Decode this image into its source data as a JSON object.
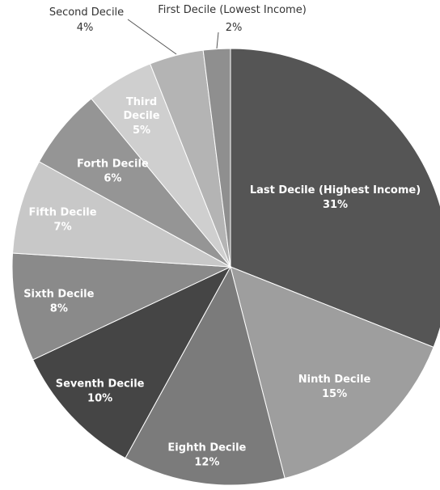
{
  "chart_data": {
    "type": "pie",
    "title": "",
    "categories": [
      "Last Decile (Highest Income)",
      "Ninth Decile",
      "Eighth Decile",
      "Seventh Decile",
      "Sixth Decile",
      "Fifth Decile",
      "Forth Decile",
      "Third Decile",
      "Second Decile",
      "First Decile (Lowest Income)"
    ],
    "values": [
      31,
      15,
      12,
      10,
      8,
      7,
      6,
      5,
      4,
      2
    ],
    "value_labels": [
      "31%",
      "15%",
      "12%",
      "10%",
      "8%",
      "7%",
      "6%",
      "5%",
      "4%",
      "2%"
    ],
    "colors": [
      "#555555",
      "#9e9e9e",
      "#7b7b7b",
      "#454545",
      "#8a8a8a",
      "#c8c8c8",
      "#959595",
      "#cfcfcf",
      "#b4b4b4",
      "#8f8f8f"
    ],
    "start": "12 o'clock",
    "direction": "clockwise",
    "legend": "none"
  }
}
